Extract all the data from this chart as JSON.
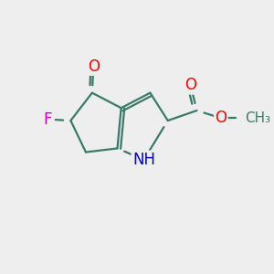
{
  "bg_color": "#eeeeee",
  "bond_color": "#3a7a6a",
  "bond_width": 1.6,
  "atom_colors": {
    "O": "#ff0000",
    "N": "#0000cc",
    "F": "#cc00cc",
    "C": "#3a7a6a"
  },
  "font_size": 11,
  "fig_size": [
    3.0,
    3.0
  ],
  "dpi": 100,
  "xlim": [
    0,
    10
  ],
  "ylim": [
    0,
    10
  ]
}
